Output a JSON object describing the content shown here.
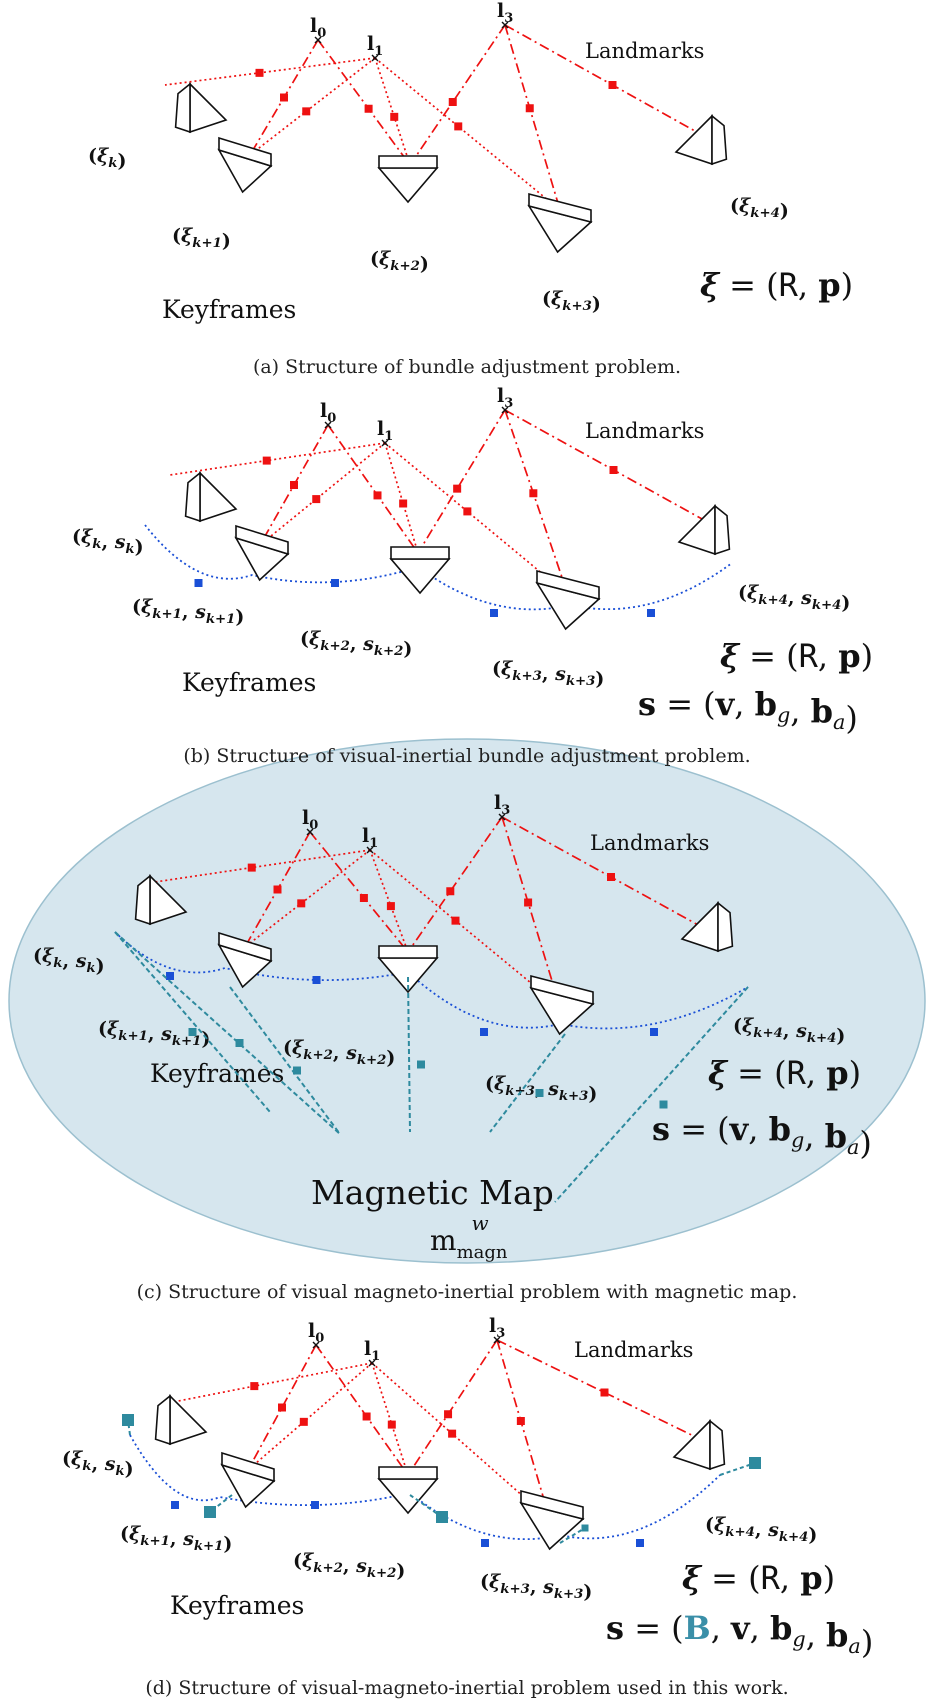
{
  "panels": [
    {
      "id": "a",
      "caption": "(a) Structure of bundle adjustment problem.",
      "landmarks_label": "Landmarks",
      "keyframes_label": "Keyframes",
      "landmark_names": [
        "l0",
        "l1",
        "l3"
      ],
      "node_labels": [
        "(ξk)",
        "(ξk+1)",
        "(ξk+2)",
        "(ξk+3)",
        "(ξk+4)"
      ],
      "equations": [
        "ξ = (R, p)"
      ]
    },
    {
      "id": "b",
      "caption": "(b) Structure of visual-inertial bundle adjustment problem.",
      "landmarks_label": "Landmarks",
      "keyframes_label": "Keyframes",
      "landmark_names": [
        "l0",
        "l1",
        "l3"
      ],
      "node_labels": [
        "(ξk, sk)",
        "(ξk+1, sk+1)",
        "(ξk+2, sk+2)",
        "(ξk+3, sk+3)",
        "(ξk+4, sk+4)"
      ],
      "equations": [
        "ξ = (R, p)",
        "s = (v, bg, ba)"
      ]
    },
    {
      "id": "c",
      "caption": "(c) Structure of visual magneto-inertial problem with magnetic map.",
      "landmarks_label": "Landmarks",
      "keyframes_label": "Keyframes",
      "landmark_names": [
        "l0",
        "l1",
        "l3"
      ],
      "node_labels": [
        "(ξk, sk)",
        "(ξk+1, sk+1)",
        "(ξk+2, sk+2)",
        "(ξk+3, sk+3)",
        "(ξk+4, sk+4)"
      ],
      "equations": [
        "ξ = (R, p)",
        "s = (v, bg, ba)"
      ],
      "map_label": "Magnetic Map",
      "map_symbol": "m",
      "map_sup": "w",
      "map_sub": "magn"
    },
    {
      "id": "d",
      "caption": "(d) Structure of visual-magneto-inertial problem used in this work.",
      "landmarks_label": "Landmarks",
      "keyframes_label": "Keyframes",
      "landmark_names": [
        "l0",
        "l1",
        "l3"
      ],
      "node_labels": [
        "(ξk, sk)",
        "(ξk+1, sk+1)",
        "(ξk+2, sk+2)",
        "(ξk+3, sk+3)",
        "(ξk+4, sk+4)"
      ],
      "equations": [
        "ξ = (R, p)",
        "s = (B, v, bg, ba)"
      ]
    }
  ],
  "colors": {
    "visual_factor": "#ee1111",
    "inertial_factor": "#1a4fd6",
    "magnetic_factor": "#2e8a9e",
    "map_ellipse": "#d6e6ee",
    "B_highlight": "#3a8fa8"
  },
  "icons": [
    "camera-icon",
    "landmark-marker"
  ]
}
